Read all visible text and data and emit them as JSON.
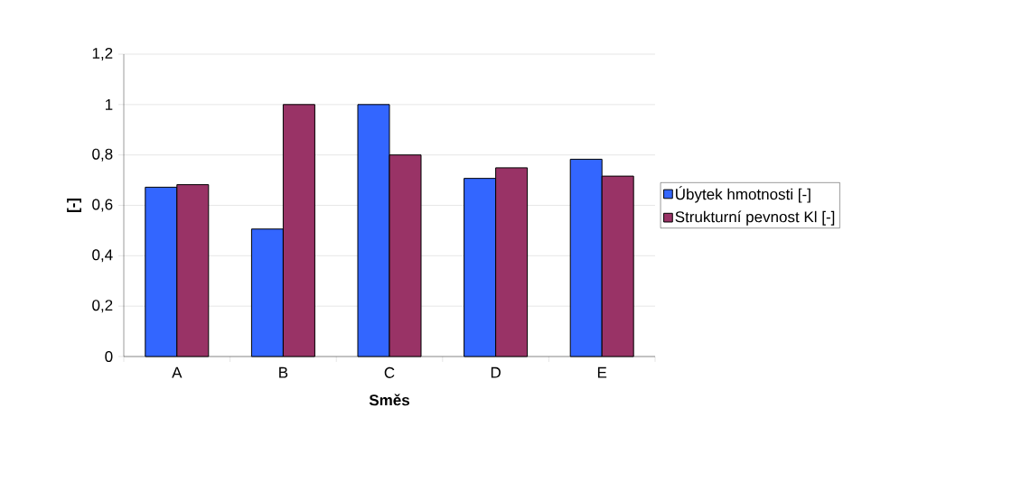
{
  "chart_data": {
    "type": "bar",
    "xlabel": "Směs",
    "ylabel": "[-]",
    "categories": [
      "A",
      "B",
      "C",
      "D",
      "E"
    ],
    "series": [
      {
        "name": "Úbytek hmotnosti [-]",
        "color": "#3366ff",
        "values": [
          0.672,
          0.506,
          1.0,
          0.707,
          0.783
        ]
      },
      {
        "name": "Strukturní pevnost Kl [-]",
        "color": "#993366",
        "values": [
          0.682,
          1.0,
          0.8,
          0.749,
          0.716
        ]
      }
    ],
    "ylim": [
      0,
      1.2
    ],
    "yticks": [
      0,
      {
        "value": 0.2,
        "label": "0,2"
      },
      {
        "value": 0.4,
        "label": "0,4"
      },
      {
        "value": 0.6,
        "label": "0,6"
      },
      {
        "value": 0.8,
        "label": "0,8"
      },
      1,
      {
        "value": 1.2,
        "label": "1,2"
      }
    ],
    "grid": "y",
    "legend": "right"
  }
}
